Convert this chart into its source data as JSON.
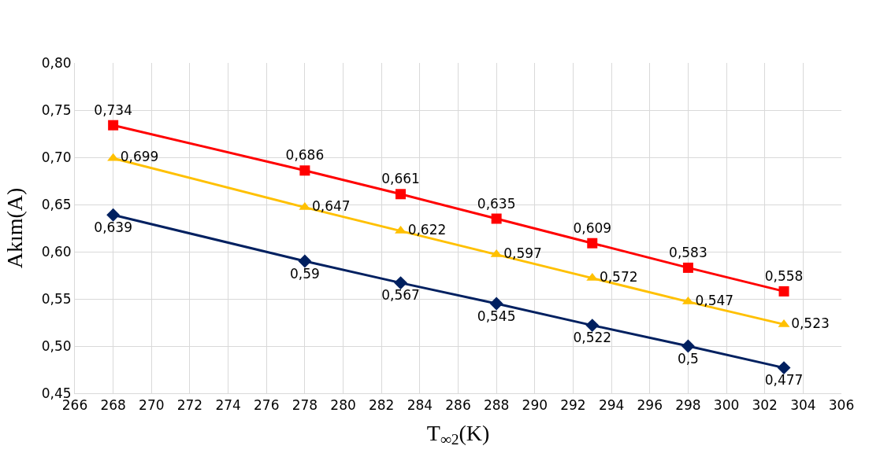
{
  "chart_data": {
    "type": "line",
    "xlabel": "T$_{∞2}$(K)",
    "ylabel": "Akım(A)",
    "x": [
      268,
      278,
      283,
      288,
      293,
      298,
      303
    ],
    "series": [
      {
        "color": "#002060",
        "marker": "diamond",
        "values": [
          0.639,
          0.59,
          0.567,
          0.545,
          0.522,
          0.5,
          0.477
        ],
        "value_labels": [
          "0,639",
          "0,59",
          "0,567",
          "0,545",
          "0,522",
          "0,5",
          "0,477"
        ]
      },
      {
        "color": "#ffc000",
        "marker": "triangle",
        "values": [
          0.699,
          0.647,
          0.622,
          0.597,
          0.572,
          0.547,
          0.523
        ],
        "value_labels": [
          "0,699",
          "0,647",
          "0,622",
          "0,597",
          "0,572",
          "0,547",
          "0,523"
        ]
      },
      {
        "color": "#ff0000",
        "marker": "square",
        "values": [
          0.734,
          0.686,
          0.661,
          0.635,
          0.609,
          0.583,
          0.558
        ],
        "value_labels": [
          "0,734",
          "0,686",
          "0,661",
          "0,635",
          "0,609",
          "0,583",
          "0,558"
        ]
      }
    ],
    "xlim": [
      266,
      306
    ],
    "xticks": [
      266,
      268,
      270,
      272,
      274,
      276,
      278,
      280,
      282,
      284,
      286,
      288,
      290,
      292,
      294,
      296,
      298,
      300,
      302,
      304,
      306
    ],
    "ylim": [
      0.45,
      0.8
    ],
    "yticks": [
      {
        "value": 0.45,
        "label": "0,45"
      },
      {
        "value": 0.5,
        "label": "0,50"
      },
      {
        "value": 0.55,
        "label": "0,55"
      },
      {
        "value": 0.6,
        "label": "0,60"
      },
      {
        "value": 0.65,
        "label": "0,65"
      },
      {
        "value": 0.7,
        "label": "0,70"
      },
      {
        "value": 0.75,
        "label": "0,75"
      },
      {
        "value": 0.8,
        "label": "0,80"
      }
    ],
    "grid": true,
    "line_style": "solid"
  }
}
